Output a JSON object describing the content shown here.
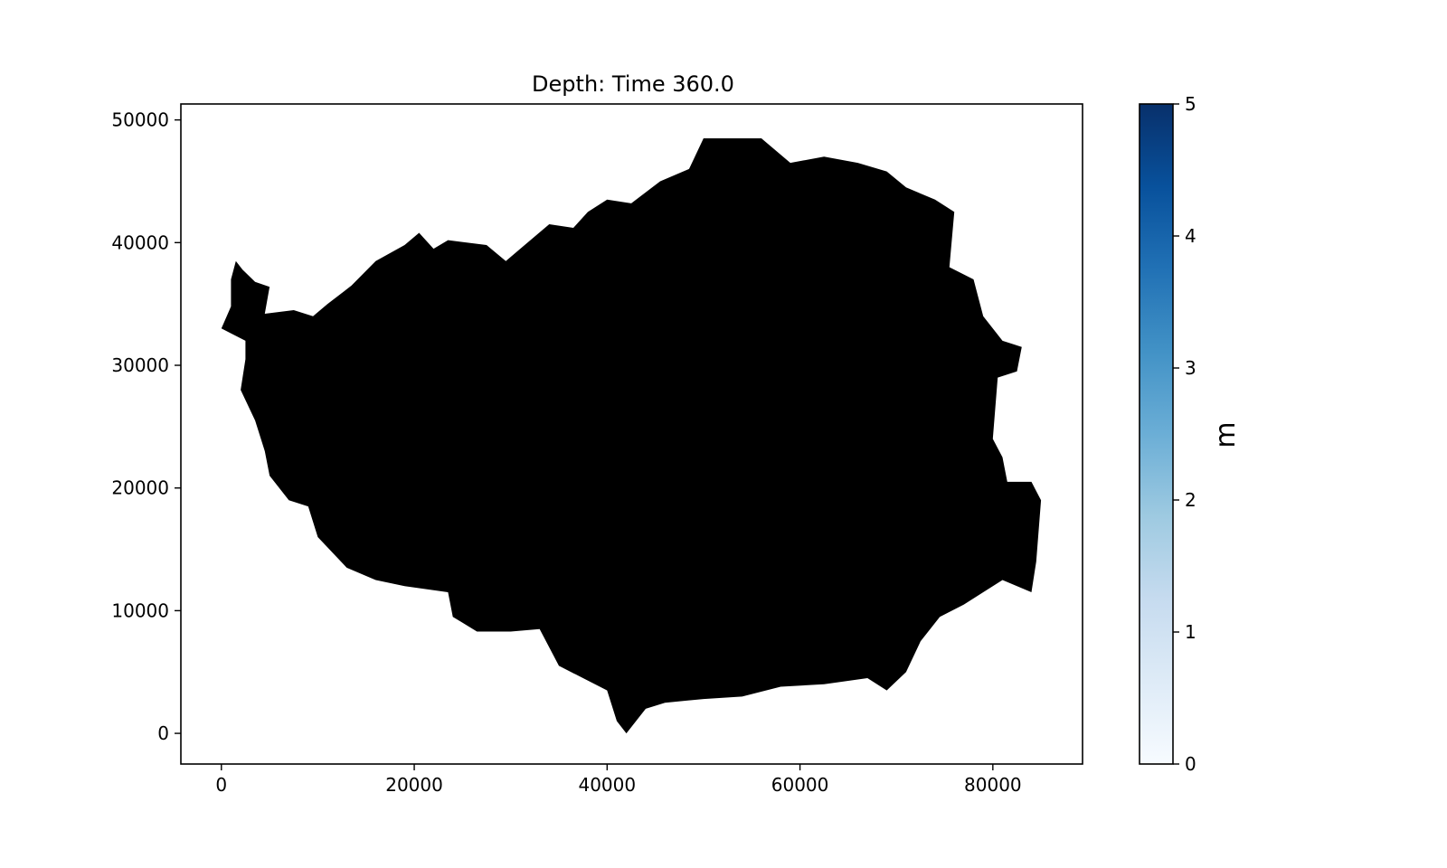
{
  "chart_data": {
    "type": "heatmap",
    "title": "Depth: Time 360.0",
    "xlabel": "",
    "ylabel": "",
    "xlim": [
      -4200,
      89300
    ],
    "ylim": [
      -2500,
      51300
    ],
    "xticks": [
      0,
      20000,
      40000,
      60000,
      80000
    ],
    "xtick_labels": [
      "0",
      "20000",
      "40000",
      "60000",
      "80000"
    ],
    "yticks": [
      0,
      10000,
      20000,
      30000,
      40000,
      50000
    ],
    "ytick_labels": [
      "0",
      "10000",
      "20000",
      "30000",
      "40000",
      "50000"
    ],
    "grid": false,
    "fill_color": "#000000",
    "colormap": "Blues",
    "colorbar": {
      "label": "m",
      "min": 0,
      "max": 5,
      "ticks": [
        0,
        1,
        2,
        3,
        4,
        5
      ],
      "tick_labels": [
        "0",
        "1",
        "2",
        "3",
        "4",
        "5"
      ],
      "colors": [
        "#f7fbff",
        "#deebf7",
        "#c6dbef",
        "#9ecae1",
        "#6baed6",
        "#4292c6",
        "#2171b5",
        "#08519c",
        "#08306b"
      ]
    },
    "region_outline": [
      [
        1500,
        38500
      ],
      [
        2200,
        37800
      ],
      [
        3500,
        36800
      ],
      [
        5000,
        36400
      ],
      [
        4500,
        34200
      ],
      [
        7500,
        34500
      ],
      [
        9500,
        34000
      ],
      [
        11000,
        35000
      ],
      [
        13500,
        36500
      ],
      [
        16000,
        38500
      ],
      [
        19000,
        39800
      ],
      [
        20500,
        40800
      ],
      [
        22000,
        39500
      ],
      [
        23500,
        40200
      ],
      [
        27500,
        39800
      ],
      [
        29500,
        38500
      ],
      [
        31000,
        39500
      ],
      [
        34000,
        41500
      ],
      [
        36500,
        41200
      ],
      [
        38000,
        42500
      ],
      [
        40000,
        43500
      ],
      [
        42500,
        43200
      ],
      [
        45500,
        45000
      ],
      [
        48500,
        46000
      ],
      [
        50000,
        48500
      ],
      [
        53000,
        48500
      ],
      [
        56000,
        48500
      ],
      [
        59000,
        46500
      ],
      [
        62500,
        47000
      ],
      [
        66000,
        46500
      ],
      [
        69000,
        45800
      ],
      [
        71000,
        44500
      ],
      [
        74000,
        43500
      ],
      [
        76000,
        42500
      ],
      [
        75500,
        38000
      ],
      [
        78000,
        37000
      ],
      [
        79000,
        34000
      ],
      [
        81000,
        32000
      ],
      [
        83000,
        31500
      ],
      [
        82500,
        29500
      ],
      [
        80500,
        29000
      ],
      [
        80000,
        24000
      ],
      [
        81000,
        22500
      ],
      [
        81500,
        20500
      ],
      [
        84000,
        20500
      ],
      [
        85000,
        19000
      ],
      [
        84500,
        14000
      ],
      [
        84000,
        11500
      ],
      [
        81000,
        12500
      ],
      [
        79000,
        11500
      ],
      [
        77000,
        10500
      ],
      [
        74500,
        9500
      ],
      [
        72500,
        7500
      ],
      [
        71000,
        5000
      ],
      [
        69000,
        3500
      ],
      [
        67000,
        4500
      ],
      [
        62500,
        4000
      ],
      [
        58000,
        3800
      ],
      [
        54000,
        3000
      ],
      [
        50000,
        2800
      ],
      [
        46000,
        2500
      ],
      [
        44000,
        2000
      ],
      [
        42000,
        0
      ],
      [
        41000,
        1000
      ],
      [
        40000,
        3500
      ],
      [
        37500,
        4500
      ],
      [
        35000,
        5500
      ],
      [
        33000,
        8500
      ],
      [
        30000,
        8300
      ],
      [
        26500,
        8300
      ],
      [
        24000,
        9500
      ],
      [
        23500,
        11500
      ],
      [
        19000,
        12000
      ],
      [
        16000,
        12500
      ],
      [
        13000,
        13500
      ],
      [
        10000,
        16000
      ],
      [
        9000,
        18500
      ],
      [
        7000,
        19000
      ],
      [
        5000,
        21000
      ],
      [
        4500,
        23000
      ],
      [
        3500,
        25500
      ],
      [
        2000,
        28000
      ],
      [
        2500,
        30500
      ],
      [
        2500,
        32000
      ],
      [
        0,
        33000
      ],
      [
        1000,
        34800
      ],
      [
        1000,
        37000
      ]
    ]
  }
}
